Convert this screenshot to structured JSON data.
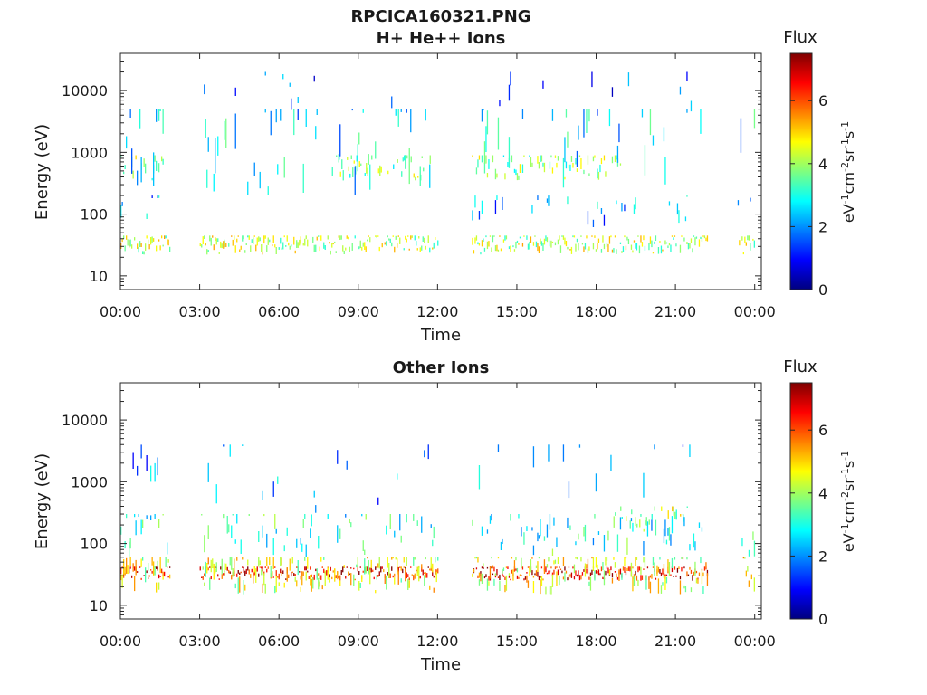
{
  "figure": {
    "filename_title": "RPCICA160321.PNG",
    "colormap": [
      "#00007f",
      "#0000ff",
      "#007fff",
      "#00ffff",
      "#7fff7f",
      "#ffff00",
      "#ff7f00",
      "#ff0000",
      "#7f0000"
    ]
  },
  "chart_data": [
    {
      "type": "heatmap",
      "title": "H+ He++ Ions",
      "xlabel": "Time",
      "ylabel": "Energy (eV)",
      "y_scale": "log",
      "xlim_hours": [
        0,
        24.25
      ],
      "ylim": [
        6,
        40000
      ],
      "x_ticks": [
        "00:00",
        "03:00",
        "06:00",
        "09:00",
        "12:00",
        "15:00",
        "18:00",
        "21:00",
        "00:00"
      ],
      "y_ticks": [
        "10",
        "100",
        "1000",
        "10000"
      ],
      "colorbar": {
        "label": "Flux",
        "units_base": "eV",
        "min": 0,
        "max": 7.5,
        "ticks": [
          "0",
          "2",
          "4",
          "6"
        ]
      },
      "data_gaps_hours": [
        [
          1.9,
          3.0
        ],
        [
          12.05,
          13.3
        ],
        [
          22.15,
          23.25
        ]
      ],
      "bands": [
        {
          "energy_range": [
            22,
            45
          ],
          "time_segments": [
            [
              0.0,
              1.9
            ],
            [
              3.0,
              12.0
            ],
            [
              13.3,
              22.2
            ],
            [
              23.4,
              24.0
            ]
          ],
          "flux_level": 4.2,
          "density": 0.85
        },
        {
          "energy_range": [
            350,
            900
          ],
          "time_segments": [
            [
              0.0,
              1.6
            ],
            [
              8.0,
              11.8
            ],
            [
              13.3,
              19.0
            ]
          ],
          "flux_level": 3.8,
          "density": 0.55
        },
        {
          "energy_range": [
            200,
            5000
          ],
          "time_segments": [
            [
              0.0,
              1.8
            ],
            [
              3.0,
              12.0
            ],
            [
              13.3,
              22.0
            ],
            [
              23.2,
              24.0
            ]
          ],
          "flux_level": 2.5,
          "density": 0.2
        },
        {
          "energy_range": [
            60,
            200
          ],
          "time_segments": [
            [
              0.0,
              1.5
            ],
            [
              13.3,
              21.5
            ],
            [
              23.3,
              24.0
            ]
          ],
          "flux_level": 2.2,
          "density": 0.15
        },
        {
          "energy_range": [
            4000,
            20000
          ],
          "time_segments": [
            [
              3.0,
              12.0
            ],
            [
              13.3,
              22.0
            ]
          ],
          "flux_level": 1.5,
          "density": 0.05
        }
      ]
    },
    {
      "type": "heatmap",
      "title": "Other Ions",
      "xlabel": "Time",
      "ylabel": "Energy (eV)",
      "y_scale": "log",
      "xlim_hours": [
        0,
        24.25
      ],
      "ylim": [
        6,
        40000
      ],
      "x_ticks": [
        "00:00",
        "03:00",
        "06:00",
        "09:00",
        "12:00",
        "15:00",
        "18:00",
        "21:00",
        "00:00"
      ],
      "y_ticks": [
        "10",
        "100",
        "1000",
        "10000"
      ],
      "colorbar": {
        "label": "Flux",
        "units_base": "eV",
        "min": 0,
        "max": 7.5,
        "ticks": [
          "0",
          "2",
          "4",
          "6"
        ]
      },
      "data_gaps_hours": [
        [
          1.9,
          3.0
        ],
        [
          12.05,
          13.3
        ],
        [
          22.15,
          23.25
        ]
      ],
      "bands": [
        {
          "energy_range": [
            25,
            42
          ],
          "time_segments": [
            [
              0.0,
              1.9
            ],
            [
              3.0,
              12.0
            ],
            [
              13.3,
              22.2
            ]
          ],
          "flux_level": 6.5,
          "density": 0.95
        },
        {
          "energy_range": [
            15,
            60
          ],
          "time_segments": [
            [
              0.0,
              1.9
            ],
            [
              3.0,
              12.0
            ],
            [
              13.3,
              22.2
            ],
            [
              23.4,
              24.0
            ]
          ],
          "flux_level": 4.5,
          "density": 0.7
        },
        {
          "energy_range": [
            60,
            300
          ],
          "time_segments": [
            [
              0.0,
              1.8
            ],
            [
              3.0,
              12.0
            ],
            [
              13.3,
              22.0
            ],
            [
              23.3,
              24.0
            ]
          ],
          "flux_level": 3.0,
          "density": 0.3
        },
        {
          "energy_range": [
            150,
            400
          ],
          "time_segments": [
            [
              18.5,
              21.8
            ]
          ],
          "flux_level": 4.0,
          "density": 0.4
        },
        {
          "energy_range": [
            300,
            4000
          ],
          "time_segments": [
            [
              0.0,
              1.5
            ],
            [
              3.0,
              12.0
            ],
            [
              13.3,
              22.0
            ]
          ],
          "flux_level": 2.0,
          "density": 0.12
        }
      ]
    }
  ]
}
